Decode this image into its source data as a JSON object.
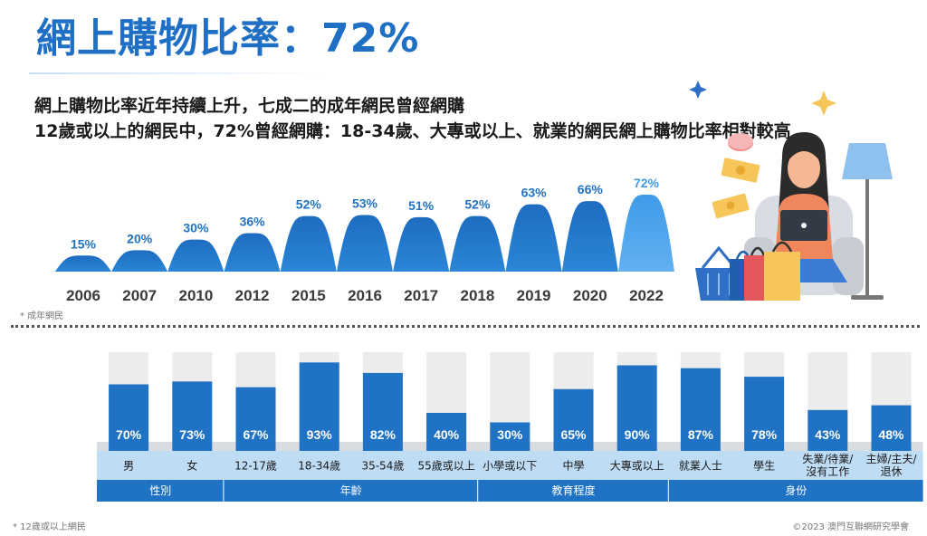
{
  "title": "網上購物比率：72%",
  "subtitle_1": "網上購物比率近年持續上升，七成二的成年網民曾經網購",
  "subtitle_2": "12歲或以上的網民中，72%曾經網購：18-34歲、大專或以上、就業的網民網上購物比率相對較高",
  "note_adults": "* 成年網民",
  "note_12plus": "* 12歲或以上網民",
  "copyright": "©2023 澳門互聯網研究學會",
  "colors": {
    "dark_blue": "#1f72c4",
    "light_blue": "#3f9bea",
    "bar_bg": "#ececec",
    "label_band": "#bfdcf5",
    "group_band": "#1f72c4"
  },
  "chart_data": [
    {
      "type": "area",
      "categories": [
        "2006",
        "2007",
        "2010",
        "2012",
        "2015",
        "2016",
        "2017",
        "2018",
        "2019",
        "2020",
        "2022"
      ],
      "values": [
        15,
        20,
        30,
        36,
        52,
        53,
        51,
        52,
        63,
        66,
        72
      ],
      "value_labels": [
        "15%",
        "20%",
        "30%",
        "36%",
        "52%",
        "53%",
        "51%",
        "52%",
        "63%",
        "66%",
        "72%"
      ],
      "unit": "%"
    },
    {
      "type": "bar",
      "ylim": [
        0,
        100
      ],
      "categories": [
        "男",
        "女",
        "12-17歲",
        "18-34歲",
        "35-54歲",
        "55歲或以上",
        "小學或以下",
        "中學",
        "大專或以上",
        "就業人士",
        "學生",
        "失業/待業/沒有工作",
        "主婦/主夫/退休"
      ],
      "category_lines": [
        [
          "男"
        ],
        [
          "女"
        ],
        [
          "12-17歲"
        ],
        [
          "18-34歲"
        ],
        [
          "35-54歲"
        ],
        [
          "55歲或以上"
        ],
        [
          "小學或以下"
        ],
        [
          "中學"
        ],
        [
          "大專或以上"
        ],
        [
          "就業人士"
        ],
        [
          "學生"
        ],
        [
          "失業/待業/",
          "沒有工作"
        ],
        [
          "主婦/主夫/",
          "退休"
        ]
      ],
      "values": [
        70,
        73,
        67,
        93,
        82,
        40,
        30,
        65,
        90,
        87,
        78,
        43,
        48
      ],
      "value_labels": [
        "70%",
        "73%",
        "67%",
        "93%",
        "82%",
        "40%",
        "30%",
        "65%",
        "90%",
        "87%",
        "78%",
        "43%",
        "48%"
      ],
      "groups": [
        {
          "name": "性別",
          "count": 2
        },
        {
          "name": "年齡",
          "count": 4
        },
        {
          "name": "教育程度",
          "count": 3
        },
        {
          "name": "身份",
          "count": 4
        }
      ]
    }
  ]
}
